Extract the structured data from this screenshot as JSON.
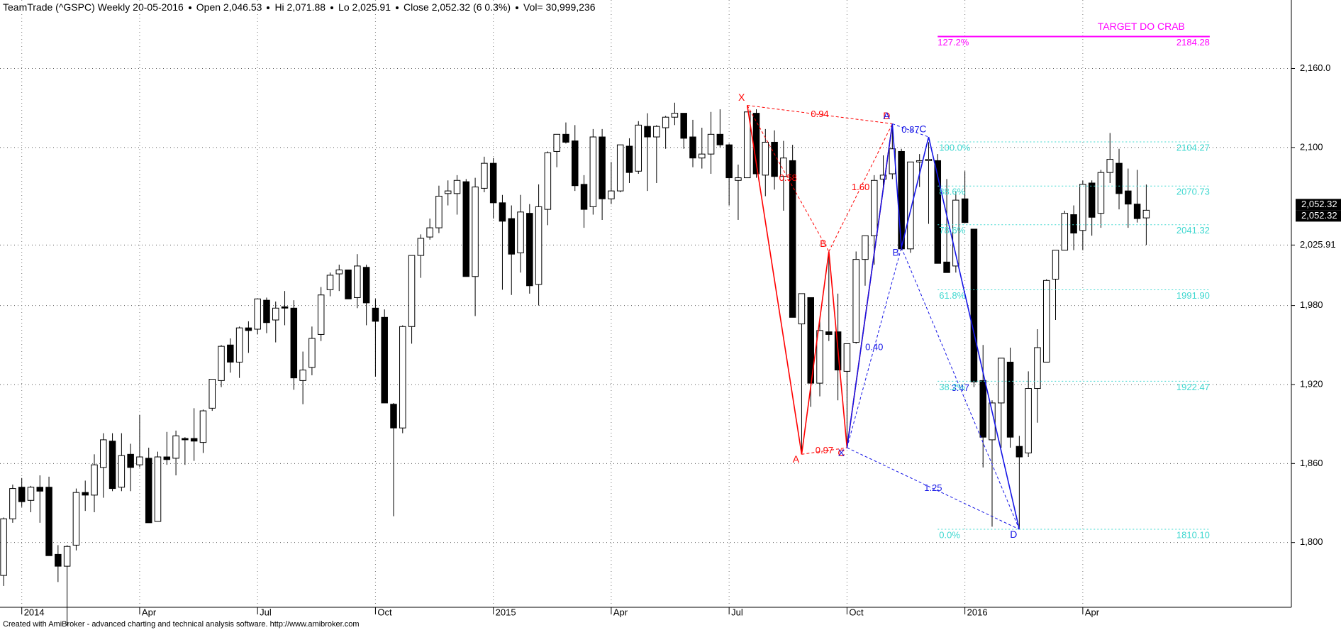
{
  "chart_data": {
    "type": "candlestick",
    "title": "TeamTrade (^GSPC) Weekly 20-05-2016",
    "info": [
      "Open 2,046.53",
      "Hi 2,071.88",
      "Lo 2,025.91",
      "Close 2,052.32 (6 0.3%)",
      "Vol= 30,999,236"
    ],
    "footer": "Created with AmiBroker - advanced charting and technical analysis software. http://www.amibroker.com",
    "up_color": "#ffffff",
    "down_color": "#000000",
    "grid": true,
    "xlim": [
      -0.4,
      142
    ],
    "ylim": [
      1750.8,
      2212
    ],
    "xticks": [
      {
        "value": 2,
        "label": "2014"
      },
      {
        "value": 15,
        "label": "Apr"
      },
      {
        "value": 28,
        "label": "Jul"
      },
      {
        "value": 41,
        "label": "Oct"
      },
      {
        "value": 54,
        "label": "2015"
      },
      {
        "value": 67,
        "label": "Apr"
      },
      {
        "value": 80,
        "label": "Jul"
      },
      {
        "value": 93,
        "label": "Oct"
      },
      {
        "value": 106,
        "label": "2016"
      },
      {
        "value": 119,
        "label": "Apr"
      }
    ],
    "yticks": [
      {
        "value": 1800,
        "label": "1,800"
      },
      {
        "value": 1860,
        "label": "1,860"
      },
      {
        "value": 1920,
        "label": "1,920"
      },
      {
        "value": 1980,
        "label": "1,980"
      },
      {
        "value": 2025.91,
        "label": "2,025.91"
      },
      {
        "value": 2100,
        "label": "2,100"
      },
      {
        "value": 2160,
        "label": "2,160.0"
      }
    ],
    "price_tags": [
      {
        "value": 2052.32,
        "label": "2,052.32"
      },
      {
        "value": 2052.32,
        "label": "2,052.32"
      }
    ],
    "ohlc": [
      [
        1775,
        1819,
        1767,
        1818
      ],
      [
        1818,
        1844,
        1815,
        1841
      ],
      [
        1842,
        1849,
        1827,
        1831
      ],
      [
        1832,
        1843,
        1823,
        1842
      ],
      [
        1842,
        1851,
        1815,
        1839
      ],
      [
        1842,
        1850,
        1790,
        1790
      ],
      [
        1791,
        1798,
        1770,
        1782
      ],
      [
        1782,
        1798,
        1737,
        1797
      ],
      [
        1798,
        1841,
        1794,
        1838
      ],
      [
        1838,
        1847,
        1824,
        1836
      ],
      [
        1836,
        1867,
        1823,
        1859
      ],
      [
        1857,
        1883,
        1834,
        1878
      ],
      [
        1877,
        1883,
        1839,
        1841
      ],
      [
        1842,
        1883,
        1839,
        1866
      ],
      [
        1867,
        1875,
        1839,
        1857
      ],
      [
        1859,
        1897,
        1857,
        1865
      ],
      [
        1864,
        1872,
        1815,
        1815
      ],
      [
        1816,
        1869,
        1816,
        1865
      ],
      [
        1865,
        1884,
        1859,
        1863
      ],
      [
        1864,
        1885,
        1851,
        1881
      ],
      [
        1879,
        1880,
        1859,
        1878
      ],
      [
        1879,
        1902,
        1862,
        1877
      ],
      [
        1876,
        1901,
        1868,
        1900
      ],
      [
        1902,
        1924,
        1900,
        1924
      ],
      [
        1923,
        1950,
        1918,
        1949
      ],
      [
        1950,
        1955,
        1929,
        1937
      ],
      [
        1937,
        1964,
        1925,
        1963
      ],
      [
        1963,
        1968,
        1944,
        1961
      ],
      [
        1962,
        1985,
        1958,
        1985
      ],
      [
        1984,
        1986,
        1959,
        1967
      ],
      [
        1969,
        1983,
        1952,
        1978
      ],
      [
        1979,
        1991,
        1965,
        1978
      ],
      [
        1978,
        1984,
        1916,
        1925
      ],
      [
        1923,
        1945,
        1905,
        1931
      ],
      [
        1933,
        1964,
        1927,
        1955
      ],
      [
        1958,
        1994,
        1953,
        1988
      ],
      [
        1992,
        2005,
        1987,
        2003
      ],
      [
        2004,
        2011,
        1991,
        2007
      ],
      [
        2007,
        2007,
        1985,
        1985
      ],
      [
        1986,
        2019,
        1978,
        2010
      ],
      [
        2009,
        2011,
        1965,
        1982
      ],
      [
        1978,
        1985,
        1926,
        1968
      ],
      [
        1971,
        1977,
        1906,
        1906
      ],
      [
        1905,
        1906,
        1820,
        1887
      ],
      [
        1887,
        1965,
        1883,
        1964
      ],
      [
        1964,
        2018,
        1951,
        2018
      ],
      [
        2018,
        2034,
        2001,
        2031
      ],
      [
        2032,
        2046,
        2030,
        2039
      ],
      [
        2039,
        2071,
        2035,
        2063
      ],
      [
        2065,
        2075,
        2056,
        2067
      ],
      [
        2065,
        2079,
        2049,
        2075
      ],
      [
        2074,
        2076,
        2002,
        2002
      ],
      [
        2002,
        2077,
        1972,
        2070
      ],
      [
        2069,
        2093,
        2066,
        2088
      ],
      [
        2088,
        2092,
        2046,
        2058
      ],
      [
        2058,
        2064,
        1992,
        2044
      ],
      [
        2046,
        2056,
        1988,
        2019
      ],
      [
        2020,
        2064,
        2005,
        2051
      ],
      [
        2050,
        2057,
        1989,
        1995
      ],
      [
        1996,
        2072,
        1980,
        2055
      ],
      [
        2053,
        2097,
        2041,
        2096
      ],
      [
        2097,
        2110,
        2085,
        2110
      ],
      [
        2110,
        2119,
        2103,
        2104
      ],
      [
        2105,
        2117,
        2067,
        2071
      ],
      [
        2072,
        2079,
        2039,
        2053
      ],
      [
        2055,
        2114,
        2049,
        2108
      ],
      [
        2108,
        2114,
        2045,
        2061
      ],
      [
        2061,
        2089,
        2057,
        2067
      ],
      [
        2067,
        2102,
        2066,
        2102
      ],
      [
        2101,
        2107,
        2073,
        2081
      ],
      [
        2082,
        2120,
        2080,
        2117
      ],
      [
        2116,
        2126,
        2067,
        2108
      ],
      [
        2108,
        2117,
        2073,
        2116
      ],
      [
        2115,
        2124,
        2099,
        2123
      ],
      [
        2123,
        2134,
        2117,
        2126
      ],
      [
        2126,
        2126,
        2099,
        2107
      ],
      [
        2108,
        2121,
        2085,
        2092
      ],
      [
        2092,
        2115,
        2084,
        2095
      ],
      [
        2095,
        2127,
        2080,
        2110
      ],
      [
        2110,
        2129,
        2100,
        2102
      ],
      [
        2102,
        2103,
        2056,
        2077
      ],
      [
        2075,
        2087,
        2045,
        2077
      ],
      [
        2077,
        2127,
        2077,
        2127
      ],
      [
        2126,
        2129,
        2077,
        2080
      ],
      [
        2079,
        2114,
        2063,
        2104
      ],
      [
        2104,
        2113,
        2068,
        2078
      ],
      [
        2078,
        2105,
        2052,
        2092
      ],
      [
        2090,
        2102,
        1971,
        1971
      ],
      [
        1966,
        1989,
        1867,
        1989
      ],
      [
        1986,
        1986,
        1903,
        1921
      ],
      [
        1921,
        1970,
        1911,
        1961
      ],
      [
        1960,
        2021,
        1953,
        1958
      ],
      [
        1960,
        1989,
        1908,
        1931
      ],
      [
        1930,
        1951,
        1872,
        1951
      ],
      [
        1952,
        2021,
        1951,
        2015
      ],
      [
        2015,
        2033,
        1995,
        2033
      ],
      [
        2033,
        2079,
        2011,
        2075
      ],
      [
        2076,
        2094,
        2069,
        2079
      ],
      [
        2080,
        2116,
        2076,
        2099
      ],
      [
        2097,
        2099,
        2022,
        2023
      ],
      [
        2023,
        2089,
        2020,
        2089
      ],
      [
        2089,
        2095,
        2070,
        2090
      ],
      [
        2090,
        2104,
        2042,
        2091
      ],
      [
        2090,
        2095,
        2013,
        2012
      ],
      [
        2013,
        2076,
        2005,
        2005
      ],
      [
        2010,
        2067,
        2005,
        2060
      ],
      [
        2061,
        2082,
        2043,
        2043
      ],
      [
        2038,
        2038,
        1918,
        1922
      ],
      [
        1923,
        1950,
        1857,
        1880
      ],
      [
        1878,
        1908,
        1812,
        1906
      ],
      [
        1906,
        1940,
        1872,
        1940
      ],
      [
        1937,
        1948,
        1872,
        1880
      ],
      [
        1873,
        1881,
        1810,
        1865
      ],
      [
        1868,
        1930,
        1865,
        1917
      ],
      [
        1917,
        1962,
        1891,
        1948
      ],
      [
        1937,
        2000,
        1937,
        1999
      ],
      [
        2000,
        2022,
        1969,
        2022
      ],
      [
        2022,
        2052,
        2022,
        2050
      ],
      [
        2049,
        2056,
        2022,
        2035
      ],
      [
        2037,
        2075,
        2022,
        2072
      ],
      [
        2073,
        2075,
        2033,
        2047
      ],
      [
        2050,
        2083,
        2039,
        2081
      ],
      [
        2081,
        2111,
        2073,
        2091
      ],
      [
        2088,
        2099,
        2053,
        2065
      ],
      [
        2067,
        2084,
        2039,
        2057
      ],
      [
        2057,
        2083,
        2043,
        2046
      ],
      [
        2046.53,
        2071.88,
        2025.91,
        2052.32
      ]
    ],
    "patterns": [
      {
        "color": "#ff0000",
        "points": [
          {
            "label": "X",
            "x": 82,
            "y": 2132
          },
          {
            "label": "A",
            "x": 88,
            "y": 1867
          },
          {
            "label": "B",
            "x": 91,
            "y": 2021
          },
          {
            "label": "C",
            "x": 93,
            "y": 1872
          },
          {
            "label": "D",
            "x": 98,
            "y": 2118
          }
        ],
        "ratios": {
          "XB": "0.58",
          "AC": "0.97",
          "BD": "1.60",
          "XD": "0.94"
        }
      },
      {
        "color": "#1515e6",
        "points": [
          {
            "label": "X",
            "x": 93,
            "y": 1872
          },
          {
            "label": "A",
            "x": 98,
            "y": 2118
          },
          {
            "label": "B",
            "x": 99,
            "y": 2024
          },
          {
            "label": "C",
            "x": 102,
            "y": 2108
          },
          {
            "label": "D",
            "x": 112,
            "y": 1810
          }
        ],
        "ratios": {
          "XB": "0.40",
          "AC": "0.87",
          "BD": "3.47",
          "XD": "1.25"
        }
      }
    ],
    "fib": {
      "color": "#40d8d0",
      "x_range": [
        103,
        133
      ],
      "levels": [
        {
          "pct": {
            "value": 100,
            "label": "100.0%"
          },
          "price": 2104.27
        },
        {
          "pct": {
            "value": 88.6,
            "label": "88.6%"
          },
          "price": 2070.73
        },
        {
          "pct": {
            "value": 78.6,
            "label": "78.6%"
          },
          "price": 2041.32
        },
        {
          "pct": {
            "value": 61.8,
            "label": "61.8%"
          },
          "price": {
            "value": 1991.9,
            "label": "1991.90"
          }
        },
        {
          "pct": {
            "value": 38.2,
            "label": "38.2%"
          },
          "price": 1922.47
        },
        {
          "pct": {
            "value": 0,
            "label": "0.0%"
          },
          "price": {
            "value": 1810.1,
            "label": "1810.10"
          }
        }
      ]
    },
    "target": {
      "color": "#ff00ff",
      "label": "TARGET DO CRAB",
      "pct": {
        "value": 127.2,
        "label": "127.2%"
      },
      "price": 2184.28,
      "x_range": [
        103,
        133
      ]
    }
  }
}
